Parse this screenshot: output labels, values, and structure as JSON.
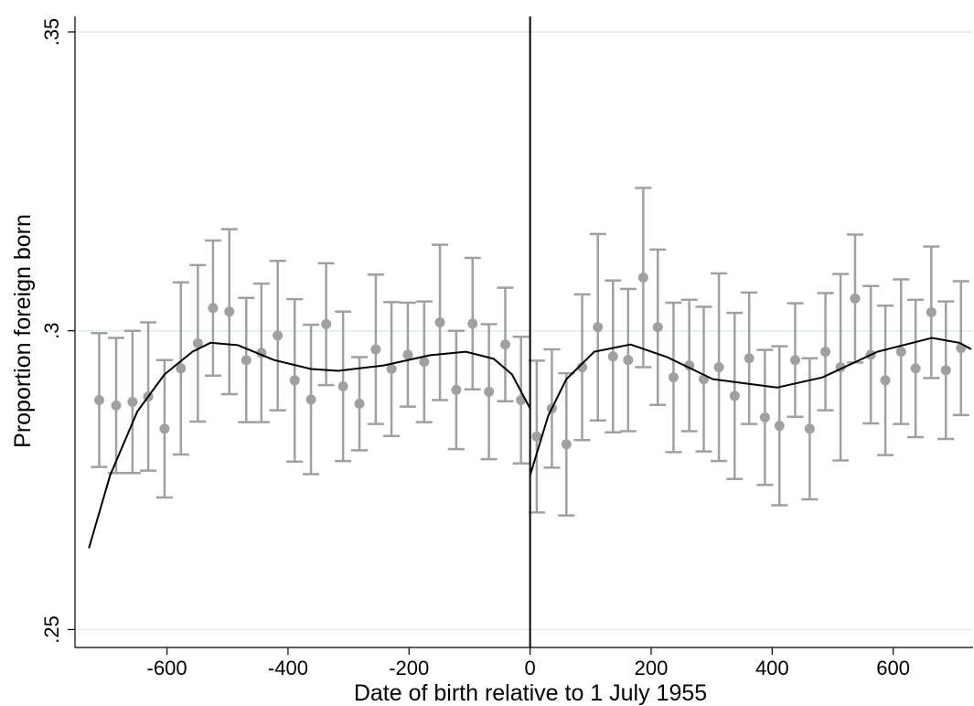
{
  "chart_data": {
    "type": "scatter",
    "xlabel": "Date of birth relative to 1 July 1955",
    "ylabel": "Proportion foreign born",
    "xlim": [
      -752,
      732
    ],
    "ylim": [
      0.247,
      0.3526
    ],
    "xticks": [
      -600,
      -400,
      -200,
      0,
      200,
      400,
      600
    ],
    "yticks": [
      {
        "value": 0.25,
        "label": ".25"
      },
      {
        "value": 0.3,
        "label": ".3"
      },
      {
        "value": 0.35,
        "label": ".35"
      }
    ],
    "grid": true,
    "grid_color": "#e3ecee",
    "vline": 0,
    "points": {
      "color": "#a0a0a0",
      "x": [
        -712,
        -684,
        -657,
        -631,
        -604,
        -577,
        -549,
        -524,
        -497,
        -469,
        -444,
        -417,
        -389,
        -362,
        -337,
        -309,
        -282,
        -255,
        -229,
        -202,
        -175,
        -149,
        -122,
        -95,
        -68,
        -41,
        -15,
        11,
        36,
        60,
        86,
        112,
        137,
        162,
        187,
        211,
        237,
        263,
        287,
        312,
        338,
        362,
        388,
        412,
        438,
        462,
        488,
        513,
        537,
        563,
        587,
        613,
        637,
        663,
        687,
        712
      ],
      "values": [
        0.2884,
        0.2875,
        0.2881,
        0.289,
        0.2836,
        0.2937,
        0.2979,
        0.3038,
        0.3032,
        0.2951,
        0.2963,
        0.2992,
        0.2917,
        0.2885,
        0.3011,
        0.2907,
        0.2878,
        0.2969,
        0.2936,
        0.296,
        0.2948,
        0.3014,
        0.2901,
        0.3012,
        0.2898,
        0.2977,
        0.2884,
        0.2823,
        0.287,
        0.281,
        0.2939,
        0.3006,
        0.2957,
        0.2951,
        0.3089,
        0.3006,
        0.2922,
        0.2942,
        0.2919,
        0.2939,
        0.2891,
        0.2954,
        0.2855,
        0.2841,
        0.2951,
        0.2836,
        0.2965,
        0.2939,
        0.3054,
        0.296,
        0.2917,
        0.2965,
        0.2937,
        0.3031,
        0.2934,
        0.2971
      ],
      "errors": [
        0.0112,
        0.0113,
        0.0119,
        0.0124,
        0.0115,
        0.0144,
        0.0131,
        0.0113,
        0.0138,
        0.0104,
        0.0116,
        0.0125,
        0.0136,
        0.0125,
        0.0102,
        0.0125,
        0.0078,
        0.0125,
        0.0112,
        0.0087,
        0.0101,
        0.013,
        0.0099,
        0.011,
        0.0113,
        0.0095,
        0.0106,
        0.0127,
        0.0099,
        0.0119,
        0.0122,
        0.0156,
        0.0127,
        0.0119,
        0.015,
        0.013,
        0.0125,
        0.011,
        0.0121,
        0.0157,
        0.0139,
        0.011,
        0.0113,
        0.0133,
        0.0095,
        0.0118,
        0.0098,
        0.0156,
        0.0107,
        0.0115,
        0.0125,
        0.0121,
        0.0115,
        0.011,
        0.0115,
        0.0112
      ]
    },
    "fits": [
      {
        "color": "#000000",
        "x": [
          -729,
          -694,
          -649,
          -604,
          -558,
          -528,
          -483,
          -423,
          -362,
          -317,
          -242,
          -166,
          -106,
          -60,
          -30,
          0
        ],
        "values": [
          0.2636,
          0.2758,
          0.2865,
          0.2927,
          0.2965,
          0.298,
          0.2976,
          0.2951,
          0.2936,
          0.2933,
          0.2942,
          0.2959,
          0.2965,
          0.2953,
          0.2927,
          0.287
        ]
      },
      {
        "color": "#000000",
        "x": [
          0,
          30,
          60,
          106,
          166,
          226,
          302,
          408,
          483,
          574,
          664,
          709,
          729
        ],
        "values": [
          0.2758,
          0.2858,
          0.2919,
          0.2965,
          0.2977,
          0.2956,
          0.2919,
          0.2905,
          0.2922,
          0.2965,
          0.2988,
          0.298,
          0.2969
        ]
      }
    ]
  }
}
